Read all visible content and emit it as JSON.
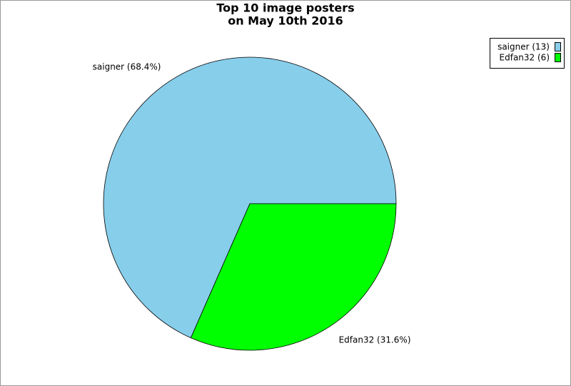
{
  "chart_data": {
    "type": "pie",
    "title": [
      "Top 10 image posters",
      "on May 10th 2016"
    ],
    "categories": [
      "saigner",
      "Edfan32"
    ],
    "values": [
      68.4,
      31.6
    ],
    "value_labels": [
      "saigner (68.4%)",
      "Edfan32 (31.6%)"
    ],
    "legend_labels": [
      "saigner (13)",
      "Edfan32 (6)"
    ],
    "colors": [
      "#87ceeb",
      "#00ff00"
    ],
    "legend": "top-right"
  }
}
